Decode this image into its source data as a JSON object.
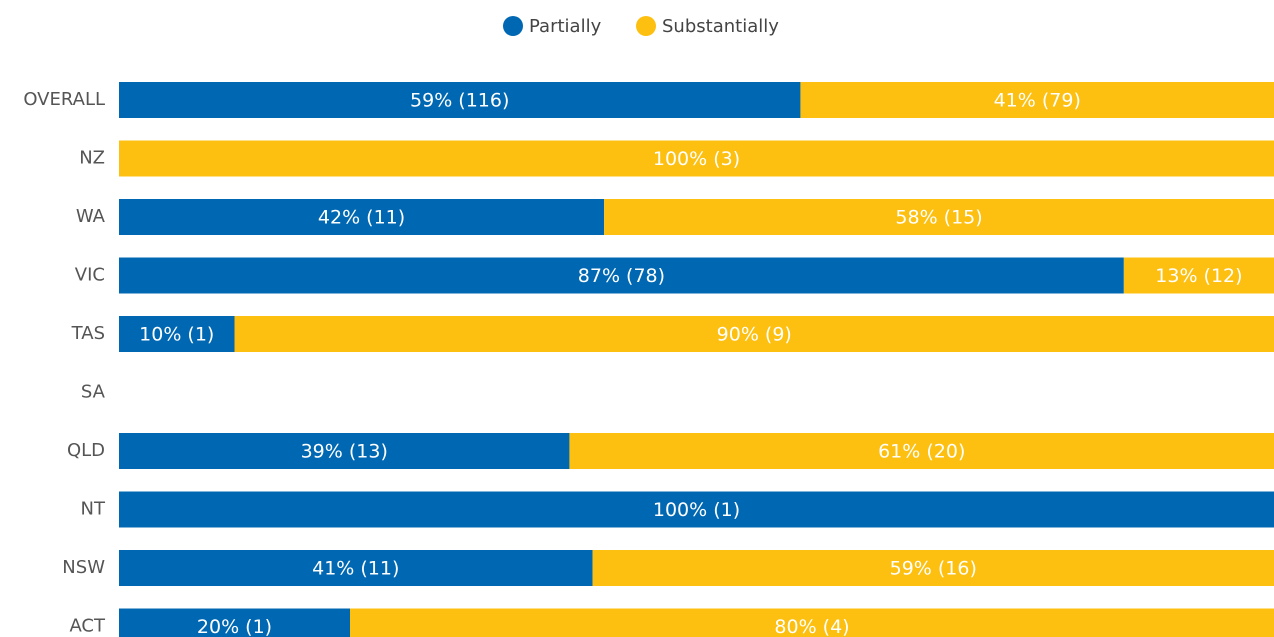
{
  "chart_data": {
    "type": "stacked-bar-horizontal",
    "categories": [
      "OVERALL",
      "NZ",
      "WA",
      "VIC",
      "TAS",
      "SA",
      "QLD",
      "NT",
      "NSW",
      "ACT"
    ],
    "series": [
      {
        "name": "Partially",
        "color": "#0068b3",
        "values": [
          59,
          null,
          42,
          87,
          10,
          null,
          39,
          100,
          41,
          20
        ],
        "value_labels": [
          "59% (116)",
          null,
          "42% (11)",
          "87% (78)",
          "10% (1)",
          null,
          "39% (13)",
          "100% (1)",
          "41% (11)",
          "20% (1)"
        ]
      },
      {
        "name": "Substantially",
        "color": "#fdc010",
        "values": [
          41,
          100,
          58,
          13,
          90,
          null,
          61,
          null,
          59,
          80
        ],
        "value_labels": [
          "41% (79)",
          "100% (3)",
          "58% (15)",
          "13% (12)",
          "90% (9)",
          null,
          "61% (20)",
          null,
          "59% (16)",
          "80% (4)"
        ]
      }
    ],
    "xlim": [
      0,
      100
    ],
    "legend": "top"
  }
}
